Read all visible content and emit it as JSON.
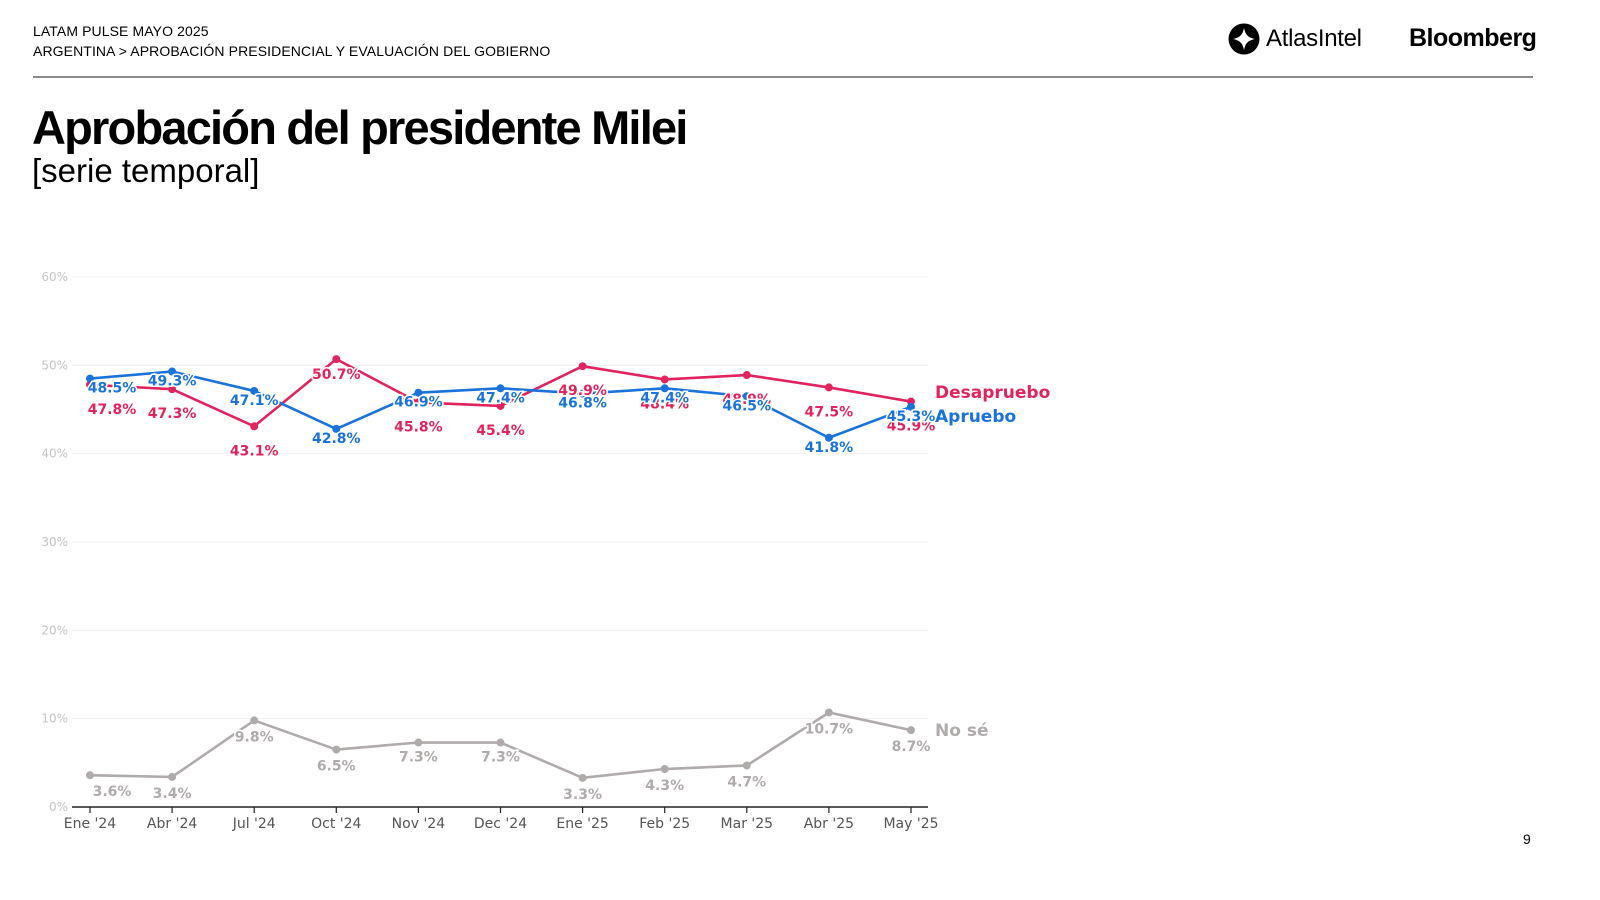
{
  "header": {
    "line1": "LATAM PULSE MAYO 2025",
    "line2": "ARGENTINA > APROBACIÓN PRESIDENCIAL Y EVALUACIÓN DEL GOBIERNO",
    "logo_atlas": "AtlasIntel",
    "logo_bloomberg": "Bloomberg"
  },
  "title": "Aprobación del presidente Milei",
  "subtitle": "[serie temporal]",
  "page_number": "9",
  "chart_data": {
    "type": "line",
    "title": "Aprobación del presidente Milei",
    "xlabel": "",
    "ylabel": "",
    "ylim": [
      0,
      60
    ],
    "yticks": [
      0,
      10,
      20,
      30,
      40,
      50,
      60
    ],
    "ytick_labels": [
      "0%",
      "10%",
      "20%",
      "30%",
      "40%",
      "50%",
      "60%"
    ],
    "grid": true,
    "legend": "inline-right",
    "categories": [
      "Ene '24",
      "Abr '24",
      "Jul '24",
      "Oct '24",
      "Nov '24",
      "Dec '24",
      "Ene '25",
      "Feb '25",
      "Mar '25",
      "Abr '25",
      "May '25"
    ],
    "series": [
      {
        "name": "Desapruebo",
        "color": "#e0245e",
        "values": [
          47.8,
          47.3,
          43.1,
          50.7,
          45.8,
          45.4,
          49.9,
          48.4,
          48.9,
          47.5,
          45.9
        ],
        "label_pos": [
          "below",
          "below",
          "below",
          "above",
          "below",
          "below",
          "below",
          "below",
          "below",
          "below",
          "below"
        ]
      },
      {
        "name": "Apruebo",
        "color": "#1a73d9",
        "values": [
          48.5,
          49.3,
          47.1,
          42.8,
          46.9,
          47.4,
          46.8,
          47.4,
          46.5,
          41.8,
          45.3
        ],
        "label_pos": [
          "below",
          "below",
          "below",
          "below",
          "below",
          "below",
          "below",
          "below",
          "below",
          "below",
          "below"
        ]
      },
      {
        "name": "No sé",
        "color": "#b0abab",
        "values": [
          3.6,
          3.4,
          9.8,
          6.5,
          7.3,
          7.3,
          3.3,
          4.3,
          4.7,
          10.7,
          8.7
        ],
        "label_pos": [
          "below",
          "below",
          "below",
          "below",
          "above",
          "above",
          "below",
          "below",
          "below",
          "below",
          "below"
        ]
      }
    ]
  }
}
